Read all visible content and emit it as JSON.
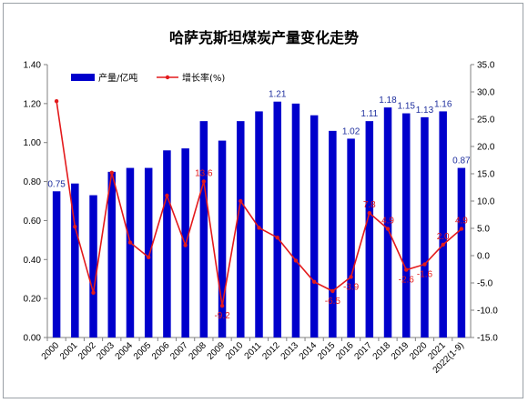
{
  "chart_data": {
    "type": "bar",
    "title": "哈萨克斯坦煤炭产量变化走势",
    "categories": [
      "2000",
      "2001",
      "2002",
      "2003",
      "2004",
      "2005",
      "2006",
      "2007",
      "2008",
      "2009",
      "2010",
      "2011",
      "2012",
      "2013",
      "2014",
      "2015",
      "2016",
      "2017",
      "2018",
      "2019",
      "2020",
      "2021",
      "2022(1-9)"
    ],
    "series": [
      {
        "name": "产量/亿吨",
        "type": "bar",
        "axis": "left",
        "color": "#0000cc",
        "values": [
          0.75,
          0.79,
          0.73,
          0.85,
          0.87,
          0.87,
          0.96,
          0.97,
          1.11,
          1.01,
          1.11,
          1.16,
          1.21,
          1.2,
          1.14,
          1.06,
          1.02,
          1.11,
          1.18,
          1.15,
          1.13,
          1.16,
          0.87
        ],
        "labels": {
          "0": "0.75",
          "12": "1.21",
          "16": "1.02",
          "17": "1.11",
          "18": "1.18",
          "19": "1.15",
          "20": "1.13",
          "21": "1.16",
          "22": "0.87"
        }
      },
      {
        "name": "增长率(%)",
        "type": "line",
        "axis": "right",
        "color": "#e31a1c",
        "values": [
          28.3,
          5.3,
          -6.8,
          15.2,
          2.4,
          -0.3,
          11.0,
          1.9,
          13.6,
          -9.2,
          10.0,
          5.1,
          3.3,
          -0.9,
          -4.8,
          -6.5,
          -3.9,
          7.8,
          4.9,
          -2.6,
          -1.6,
          2.0,
          4.9
        ],
        "labels": {
          "8": "13.6",
          "9": "-9.2",
          "15": "-6.5",
          "16": "-3.9",
          "17": "7.8",
          "18": "4.9",
          "19": "-2.6",
          "20": "-1.6",
          "21": "2.0",
          "22": "4.9"
        }
      }
    ],
    "y_left": {
      "min": 0,
      "max": 1.4,
      "ticks": [
        "0.00",
        "0.20",
        "0.40",
        "0.60",
        "0.80",
        "1.00",
        "1.20",
        "1.40"
      ]
    },
    "y_right": {
      "min": -15,
      "max": 35,
      "ticks": [
        "-15.0",
        "-10.0",
        "-5.0",
        "0.0",
        "5.0",
        "10.0",
        "15.0",
        "20.0",
        "25.0",
        "30.0",
        "35.0"
      ]
    },
    "grid": false,
    "legend_position": "top-left"
  }
}
